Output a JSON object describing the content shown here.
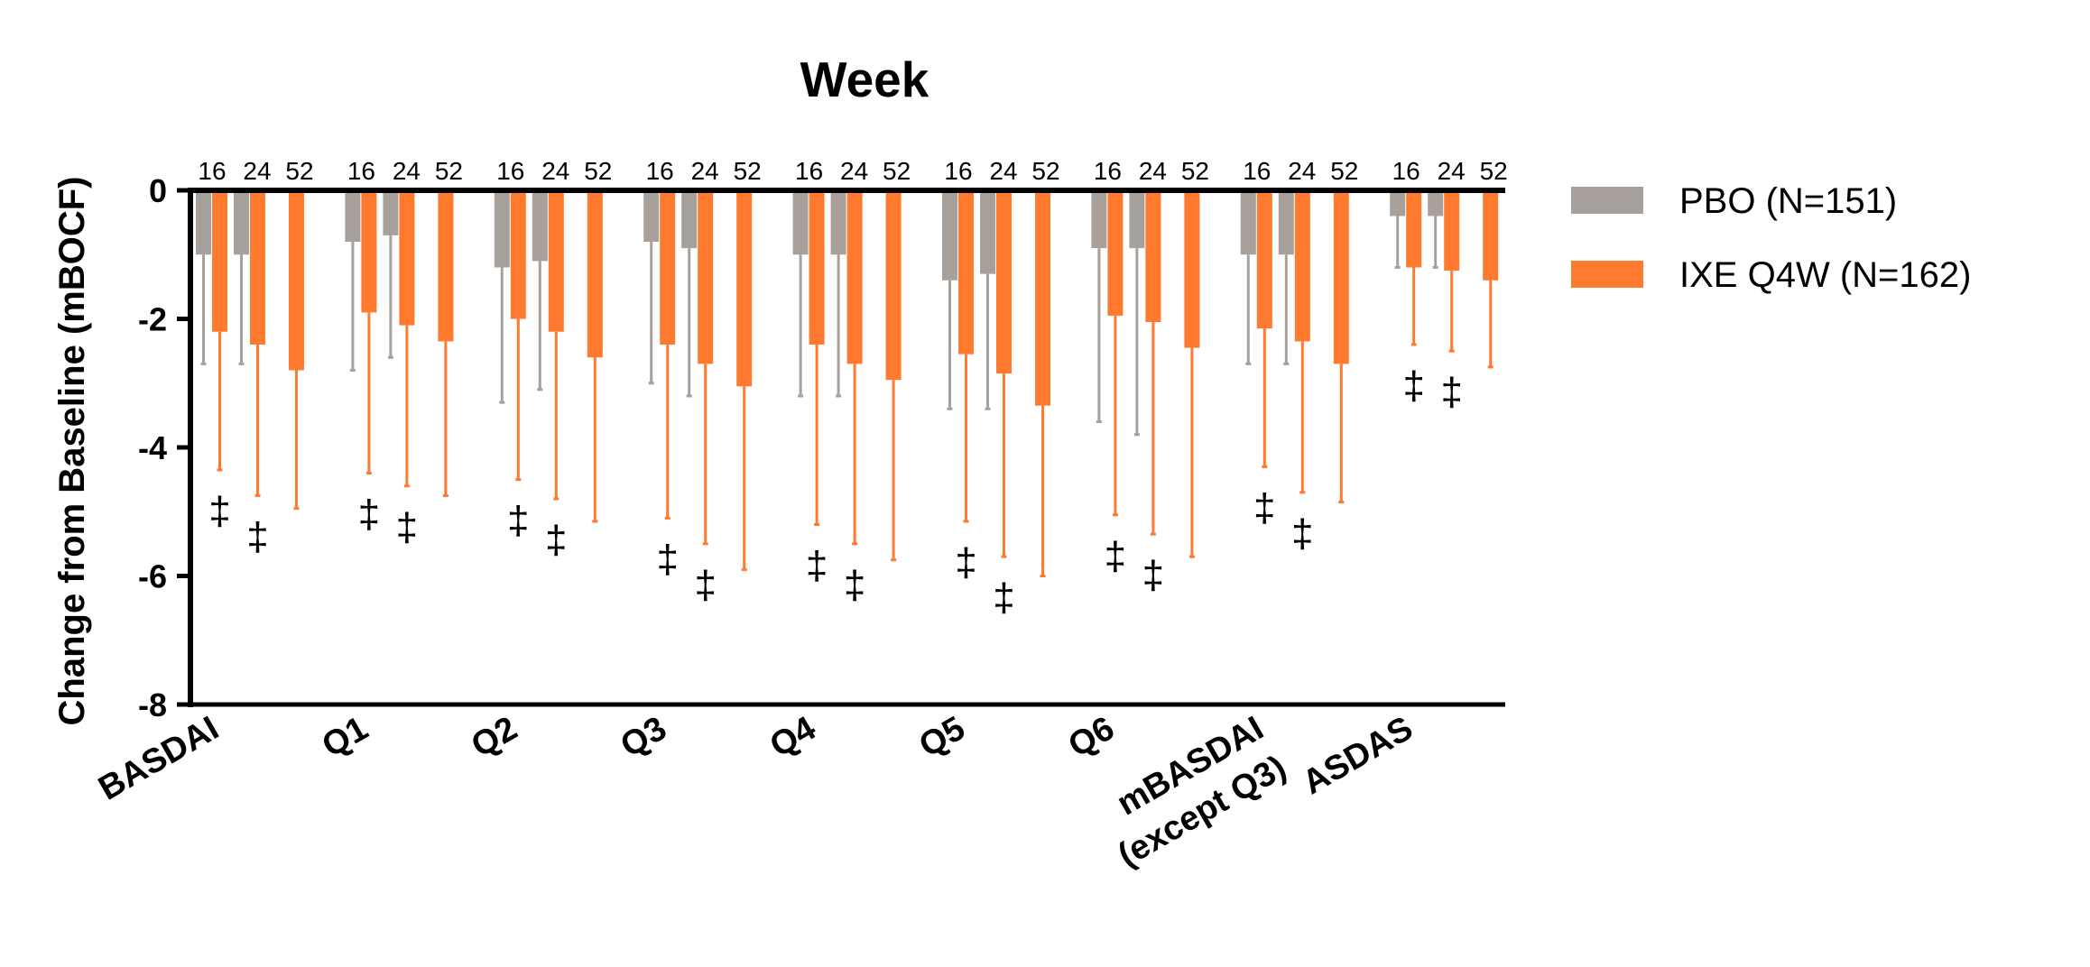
{
  "chart_data": {
    "type": "bar",
    "title": "Week",
    "xlabel": "",
    "ylabel": "Change from Baseline (mBOCF)",
    "ylim": [
      -8,
      0
    ],
    "yticks": [
      0,
      -2,
      -4,
      -6,
      -8
    ],
    "ytick_labels": [
      "0",
      "-2",
      "-4",
      "-6",
      "-8"
    ],
    "weeks": [
      "16",
      "24",
      "52"
    ],
    "categories": [
      {
        "label": [
          "BASDAI"
        ]
      },
      {
        "label": [
          "Q1"
        ]
      },
      {
        "label": [
          "Q2"
        ]
      },
      {
        "label": [
          "Q3"
        ]
      },
      {
        "label": [
          "Q4"
        ]
      },
      {
        "label": [
          "Q5"
        ]
      },
      {
        "label": [
          "Q6"
        ]
      },
      {
        "label": [
          "mBASDAI",
          "(except Q3)"
        ]
      },
      {
        "label": [
          "ASDAS"
        ]
      }
    ],
    "significance_marker": "‡",
    "series": [
      {
        "name": "PBO (N=151)",
        "color": "#a8a09a",
        "values": [
          [
            -1.0,
            -1.0
          ],
          [
            -0.8,
            -0.7
          ],
          [
            -1.2,
            -1.1
          ],
          [
            -0.8,
            -0.9
          ],
          [
            -1.0,
            -1.0
          ],
          [
            -1.4,
            -1.3
          ],
          [
            -0.9,
            -0.9
          ],
          [
            -1.0,
            -1.0
          ],
          [
            -0.4,
            -0.4
          ]
        ],
        "error": [
          [
            1.7,
            1.7
          ],
          [
            2.0,
            1.9
          ],
          [
            2.1,
            2.0
          ],
          [
            2.2,
            2.3
          ],
          [
            2.2,
            2.2
          ],
          [
            2.0,
            2.1
          ],
          [
            2.7,
            2.9
          ],
          [
            1.7,
            1.7
          ],
          [
            0.8,
            0.8
          ]
        ]
      },
      {
        "name": "IXE Q4W (N=162)",
        "color": "#ff7a2e",
        "values": [
          [
            -2.2,
            -2.4,
            -2.8
          ],
          [
            -1.9,
            -2.1,
            -2.35
          ],
          [
            -2.0,
            -2.2,
            -2.6
          ],
          [
            -2.4,
            -2.7,
            -3.05
          ],
          [
            -2.4,
            -2.7,
            -2.95
          ],
          [
            -2.55,
            -2.85,
            -3.35
          ],
          [
            -1.95,
            -2.05,
            -2.45
          ],
          [
            -2.15,
            -2.35,
            -2.7
          ],
          [
            -1.2,
            -1.25,
            -1.4
          ]
        ],
        "error": [
          [
            2.15,
            2.35,
            2.15
          ],
          [
            2.5,
            2.5,
            2.4
          ],
          [
            2.5,
            2.6,
            2.55
          ],
          [
            2.7,
            2.8,
            2.85
          ],
          [
            2.8,
            2.8,
            2.8
          ],
          [
            2.6,
            2.85,
            2.65
          ],
          [
            3.1,
            3.3,
            3.25
          ],
          [
            2.15,
            2.35,
            2.15
          ],
          [
            1.2,
            1.25,
            1.35
          ]
        ]
      }
    ],
    "legend": {
      "position": "right"
    }
  }
}
